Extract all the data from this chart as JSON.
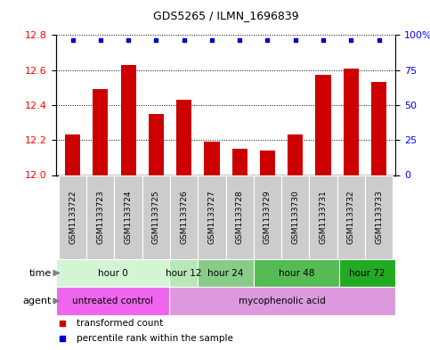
{
  "title": "GDS5265 / ILMN_1696839",
  "samples": [
    "GSM1133722",
    "GSM1133723",
    "GSM1133724",
    "GSM1133725",
    "GSM1133726",
    "GSM1133727",
    "GSM1133728",
    "GSM1133729",
    "GSM1133730",
    "GSM1133731",
    "GSM1133732",
    "GSM1133733"
  ],
  "bar_values": [
    12.23,
    12.49,
    12.63,
    12.35,
    12.43,
    12.19,
    12.15,
    12.14,
    12.23,
    12.57,
    12.61,
    12.53
  ],
  "bar_color": "#cc0000",
  "percentile_color": "#0000cc",
  "ylim_left": [
    12.0,
    12.8
  ],
  "ylim_right": [
    0,
    100
  ],
  "yticks_left": [
    12.0,
    12.2,
    12.4,
    12.6,
    12.8
  ],
  "yticks_right": [
    0,
    25,
    50,
    75,
    100
  ],
  "ytick_labels_right": [
    "0",
    "25",
    "50",
    "75",
    "100%"
  ],
  "time_groups": [
    {
      "label": "hour 0",
      "start": 0,
      "end": 4,
      "color": "#d4f5d4"
    },
    {
      "label": "hour 12",
      "start": 4,
      "end": 5,
      "color": "#b8e8b8"
    },
    {
      "label": "hour 24",
      "start": 5,
      "end": 7,
      "color": "#88cc88"
    },
    {
      "label": "hour 48",
      "start": 7,
      "end": 10,
      "color": "#55bb55"
    },
    {
      "label": "hour 72",
      "start": 10,
      "end": 12,
      "color": "#22aa22"
    }
  ],
  "agent_groups": [
    {
      "label": "untreated control",
      "start": 0,
      "end": 4,
      "color": "#ee66ee"
    },
    {
      "label": "mycophenolic acid",
      "start": 4,
      "end": 12,
      "color": "#dd99dd"
    }
  ],
  "sample_box_color": "#cccccc",
  "legend_items": [
    {
      "label": "transformed count",
      "color": "#cc0000"
    },
    {
      "label": "percentile rank within the sample",
      "color": "#0000cc"
    }
  ],
  "bar_width": 0.55,
  "figsize": [
    4.83,
    3.93
  ],
  "dpi": 100
}
